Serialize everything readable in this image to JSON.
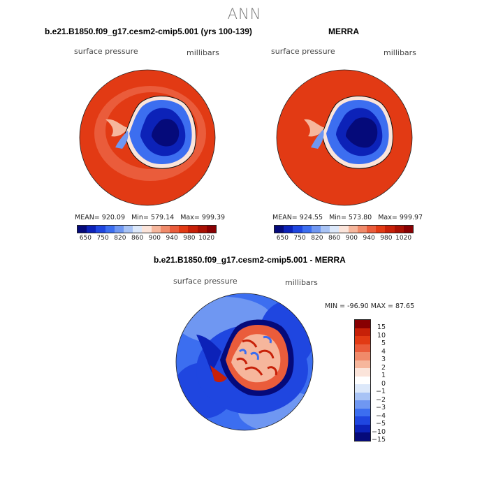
{
  "main_title": "ANN",
  "panels": [
    {
      "title": "b.e21.B1850.f09_g17.cesm2-cmip5.001 (yrs 100-139)",
      "variable": "surface pressure",
      "units": "millibars",
      "mean_label": "MEAN= 920.09",
      "min_label": "Min= 579.14",
      "max_label": "Max= 999.39"
    },
    {
      "title": "MERRA",
      "variable": "surface pressure",
      "units": "millibars",
      "mean_label": "MEAN= 924.55",
      "min_label": "Min= 573.80",
      "max_label": "Max= 999.97"
    }
  ],
  "colorbar_levels": [
    "650",
    "750",
    "820",
    "860",
    "900",
    "940",
    "980",
    "1020"
  ],
  "colorbar_colors": [
    "#050a7a",
    "#0c22b8",
    "#1f46e0",
    "#3c6ef0",
    "#6f97f2",
    "#a8c3f5",
    "#dce8fa",
    "#fbe4da",
    "#f6b69c",
    "#f08a6a",
    "#ea5c3b",
    "#e23a14",
    "#c72008",
    "#a81003",
    "#880002"
  ],
  "diff_panel": {
    "title": "b.e21.B1850.f09_g17.cesm2-cmip5.001 - MERRA",
    "variable": "surface pressure",
    "units": "millibars",
    "minmax_label": "MIN = -96.90 MAX =  87.65",
    "levels": [
      "15",
      "10",
      "5",
      "4",
      "3",
      "2",
      "1",
      "0",
      "−1",
      "−2",
      "−3",
      "−4",
      "−5",
      "−10",
      "−15"
    ],
    "colors": [
      "#880002",
      "#c72008",
      "#e23a14",
      "#ea5c3b",
      "#f08a6a",
      "#f6b69c",
      "#fbe4da",
      "#ffffff",
      "#dce8fa",
      "#a8c3f5",
      "#6f97f2",
      "#3c6ef0",
      "#1f46e0",
      "#0c22b8",
      "#050a7a"
    ]
  }
}
